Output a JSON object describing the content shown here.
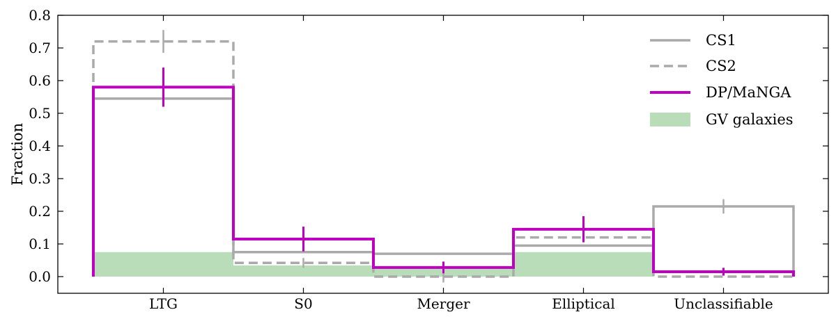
{
  "chart_data": {
    "type": "bar",
    "title": "",
    "xlabel": "",
    "ylabel": "Fraction",
    "categories": [
      "LTG",
      "S0",
      "Merger",
      "Elliptical",
      "Unclassifiable"
    ],
    "ylim": [
      -0.05,
      0.8
    ],
    "yticks": [
      "0.0",
      "0.1",
      "0.2",
      "0.3",
      "0.4",
      "0.5",
      "0.6",
      "0.7",
      "0.8"
    ],
    "legend_position": "top-right",
    "grid": false,
    "series": [
      {
        "name": "GV galaxies",
        "style": "filled",
        "color": "#b9dcb9",
        "values": [
          0.075,
          0.034,
          0.03,
          0.075,
          0.0
        ],
        "errors": null
      },
      {
        "name": "CS1",
        "style": "solid-step",
        "color": "#aaaaaa",
        "values": [
          0.545,
          0.075,
          0.07,
          0.095,
          0.215
        ],
        "errors": [
          0.0,
          0.0,
          0.0,
          0.0,
          0.022
        ]
      },
      {
        "name": "CS2",
        "style": "dashed-step",
        "color": "#aaaaaa",
        "values": [
          0.72,
          0.042,
          0.0,
          0.12,
          0.0
        ],
        "errors": [
          0.035,
          0.015,
          0.018,
          0.015,
          0.0
        ]
      },
      {
        "name": "DP/MaNGA",
        "style": "solid-step",
        "color": "#c000c0",
        "values": [
          0.58,
          0.115,
          0.028,
          0.145,
          0.015
        ],
        "errors": [
          0.06,
          0.038,
          0.018,
          0.04,
          0.012
        ]
      }
    ]
  }
}
